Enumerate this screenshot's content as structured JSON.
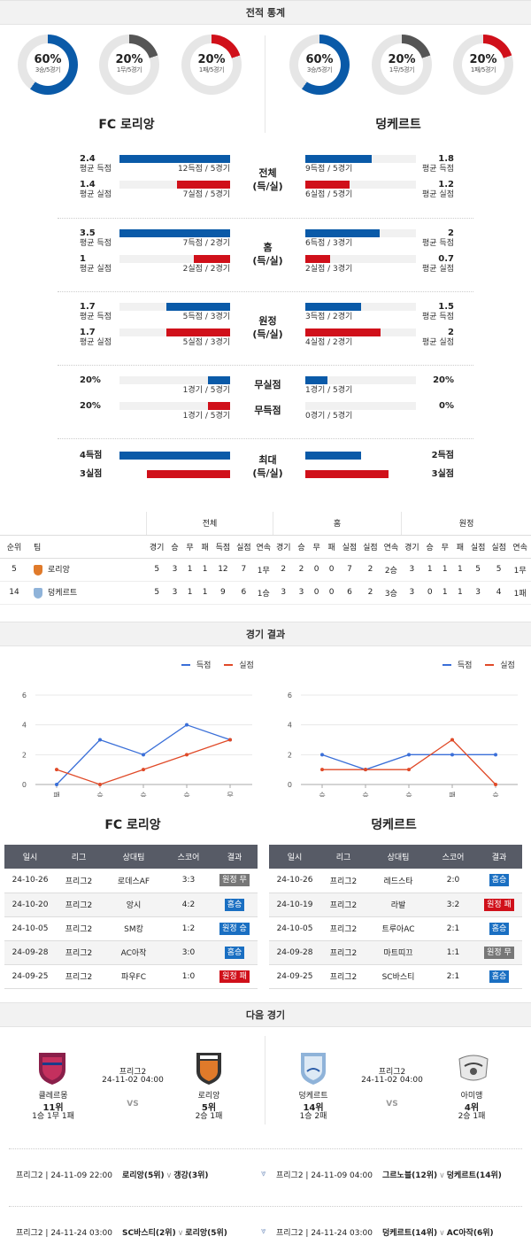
{
  "sections": {
    "stats": "전적 통계",
    "results": "경기 결과",
    "next": "다음 경기"
  },
  "colors": {
    "blue": "#0a5aa8",
    "red": "#d0101a",
    "gray": "#555555"
  },
  "donuts": [
    {
      "pct": "60%",
      "sub": "3승/5경기",
      "color": "#0a5aa8",
      "value": 0.6
    },
    {
      "pct": "20%",
      "sub": "1무/5경기",
      "color": "#555555",
      "value": 0.2
    },
    {
      "pct": "20%",
      "sub": "1패/5경기",
      "color": "#d0101a",
      "value": 0.2
    },
    {
      "pct": "60%",
      "sub": "3승/5경기",
      "color": "#0a5aa8",
      "value": 0.6
    },
    {
      "pct": "20%",
      "sub": "1무/5경기",
      "color": "#555555",
      "value": 0.2
    },
    {
      "pct": "20%",
      "sub": "1패/5경기",
      "color": "#d0101a",
      "value": 0.2
    }
  ],
  "home_team": "FC 로리앙",
  "away_team": "덩케르트",
  "stat_groups": [
    {
      "cat": "전체\n(득/실)",
      "rows": [
        {
          "lv": "2.4",
          "ll": "평균 득점",
          "lcap": "12득점 / 5경기",
          "lfrac": 1.0,
          "rv": "1.8",
          "rl": "평균 득점",
          "rcap": "9득점 / 5경기",
          "rfrac": 0.6,
          "color": "blue"
        },
        {
          "lv": "1.4",
          "ll": "평균 실점",
          "lcap": "7실점 / 5경기",
          "lfrac": 0.48,
          "rv": "1.2",
          "rl": "평균 실점",
          "rcap": "6실점 / 5경기",
          "rfrac": 0.4,
          "color": "red"
        }
      ]
    },
    {
      "cat": "홈\n(득/실)",
      "rows": [
        {
          "lv": "3.5",
          "ll": "평균 득점",
          "lcap": "7득점 / 2경기",
          "lfrac": 1.0,
          "rv": "2",
          "rl": "평균 득점",
          "rcap": "6득점 / 3경기",
          "rfrac": 0.67,
          "color": "blue"
        },
        {
          "lv": "1",
          "ll": "평균 실점",
          "lcap": "2실점 / 2경기",
          "lfrac": 0.33,
          "rv": "0.7",
          "rl": "평균 실점",
          "rcap": "2실점 / 3경기",
          "rfrac": 0.22,
          "color": "red"
        }
      ]
    },
    {
      "cat": "원정\n(득/실)",
      "rows": [
        {
          "lv": "1.7",
          "ll": "평균 득점",
          "lcap": "5득점 / 3경기",
          "lfrac": 0.58,
          "rv": "1.5",
          "rl": "평균 득점",
          "rcap": "3득점 / 2경기",
          "rfrac": 0.5,
          "color": "blue"
        },
        {
          "lv": "1.7",
          "ll": "평균 실점",
          "lcap": "5실점 / 3경기",
          "lfrac": 0.58,
          "rv": "2",
          "rl": "평균 실점",
          "rcap": "4실점 / 2경기",
          "rfrac": 0.68,
          "color": "red"
        }
      ]
    },
    {
      "cat": "",
      "rows": [
        {
          "lv": "20%",
          "ll": "",
          "lcap": "1경기 / 5경기",
          "lfrac": 0.2,
          "rv": "20%",
          "rl": "",
          "rcap": "1경기 / 5경기",
          "rfrac": 0.2,
          "color": "blue",
          "mid": "무실점"
        },
        {
          "lv": "20%",
          "ll": "",
          "lcap": "1경기 / 5경기",
          "lfrac": 0.2,
          "rv": "0%",
          "rl": "",
          "rcap": "0경기 / 5경기",
          "rfrac": 0.0,
          "color": "red",
          "mid": "무득점"
        }
      ]
    }
  ],
  "max_group": {
    "cat": "최대\n(득/실)",
    "rows": [
      {
        "lv": "4득점",
        "lfrac": 1.0,
        "rv": "2득점",
        "rfrac": 0.5,
        "color": "blue"
      },
      {
        "lv": "3실점",
        "lfrac": 0.75,
        "rv": "3실점",
        "rfrac": 0.75,
        "color": "red"
      }
    ]
  },
  "rank_table": {
    "groups": [
      "전체",
      "홈",
      "원정"
    ],
    "headers": [
      "순위",
      "팀",
      "경기",
      "승",
      "무",
      "패",
      "득점",
      "실점",
      "연속",
      "경기",
      "승",
      "무",
      "패",
      "실점",
      "실점",
      "연속",
      "경기",
      "승",
      "무",
      "패",
      "실점",
      "실점",
      "연속"
    ],
    "rows": [
      {
        "cells": [
          "5",
          "로리앙",
          "5",
          "3",
          "1",
          "1",
          "12",
          "7",
          "1무",
          "2",
          "2",
          "0",
          "0",
          "7",
          "2",
          "2승",
          "3",
          "1",
          "1",
          "1",
          "5",
          "5",
          "1무"
        ],
        "crest": "#e07a2a"
      },
      {
        "cells": [
          "14",
          "덩케르트",
          "5",
          "3",
          "1",
          "1",
          "9",
          "6",
          "1승",
          "3",
          "3",
          "0",
          "0",
          "6",
          "2",
          "3승",
          "3",
          "0",
          "1",
          "1",
          "3",
          "4",
          "1패"
        ],
        "crest": "#8fb3d9"
      }
    ]
  },
  "legend": {
    "scored": "득점",
    "conceded": "실점"
  },
  "chart_data": [
    {
      "type": "line",
      "categories": [
        "패",
        "승",
        "승",
        "승",
        "무"
      ],
      "ylim": [
        0,
        6
      ],
      "yticks": [
        "0",
        "2",
        "4",
        "6"
      ],
      "series": [
        {
          "name": "득점",
          "values": [
            0,
            3,
            2,
            4,
            3
          ]
        },
        {
          "name": "실점",
          "values": [
            1,
            0,
            1,
            2,
            3
          ]
        }
      ]
    },
    {
      "type": "line",
      "categories": [
        "승",
        "승",
        "승",
        "패",
        "승"
      ],
      "ylim": [
        0,
        6
      ],
      "yticks": [
        "0",
        "2",
        "4",
        "6"
      ],
      "series": [
        {
          "name": "득점",
          "values": [
            2,
            1,
            2,
            2,
            2
          ]
        },
        {
          "name": "실점",
          "values": [
            1,
            1,
            1,
            3,
            0
          ]
        }
      ]
    }
  ],
  "results_headers": [
    "일시",
    "리그",
    "상대팀",
    "스코어",
    "결과"
  ],
  "results_left": [
    [
      "24-10-26",
      "프리그2",
      "로데스AF",
      "3:3",
      "원정 무",
      "bd"
    ],
    [
      "24-10-20",
      "프리그2",
      "앙시",
      "4:2",
      "홈승",
      "bw"
    ],
    [
      "24-10-05",
      "프리그2",
      "SM캉",
      "1:2",
      "원정 승",
      "bw"
    ],
    [
      "24-09-28",
      "프리그2",
      "AC아작",
      "3:0",
      "홈승",
      "bw"
    ],
    [
      "24-09-25",
      "프리그2",
      "파우FC",
      "1:0",
      "원정 패",
      "bl"
    ]
  ],
  "results_right": [
    [
      "24-10-26",
      "프리그2",
      "레드스타",
      "2:0",
      "홈승",
      "bw"
    ],
    [
      "24-10-19",
      "프리그2",
      "라발",
      "3:2",
      "원정 패",
      "bl"
    ],
    [
      "24-10-05",
      "프리그2",
      "트루아AC",
      "2:1",
      "홈승",
      "bw"
    ],
    [
      "24-09-28",
      "프리그2",
      "마트띠끄",
      "1:1",
      "원정 무",
      "bd"
    ],
    [
      "24-09-25",
      "프리그2",
      "SC바스티",
      "2:1",
      "홈승",
      "bw"
    ]
  ],
  "next_left": {
    "home": {
      "name": "클레르몽",
      "rank": "11위",
      "rec": "1승 1무 1패"
    },
    "away": {
      "name": "로리앙",
      "rank": "5위",
      "rec": "2승 1패"
    },
    "league": "프리그2",
    "time": "24-11-02 04:00",
    "vs": "VS"
  },
  "next_right": {
    "home": {
      "name": "덩케르트",
      "rank": "14위",
      "rec": "1승 2패"
    },
    "away": {
      "name": "아미앵",
      "rank": "4위",
      "rec": "2승 1패"
    },
    "league": "프리그2",
    "time": "24-11-02 04:00",
    "vs": "VS"
  },
  "upcoming": [
    {
      "left": "프리그2 | 24-11-09 22:00",
      "lmatch": "로리앙(5위)",
      "lopp": "갱강(3위)",
      "right": "프리그2 | 24-11-09 04:00",
      "rmatch": "그르노블(12위)",
      "ropp": "덩케르트(14위)"
    },
    {
      "left": "프리그2 | 24-11-24 03:00",
      "lmatch": "SC바스티(2위)",
      "lopp": "로리앙(5위)",
      "right": "프리그2 | 24-11-24 03:00",
      "rmatch": "덩케르트(14위)",
      "ropp": "AC아작(6위)"
    }
  ]
}
